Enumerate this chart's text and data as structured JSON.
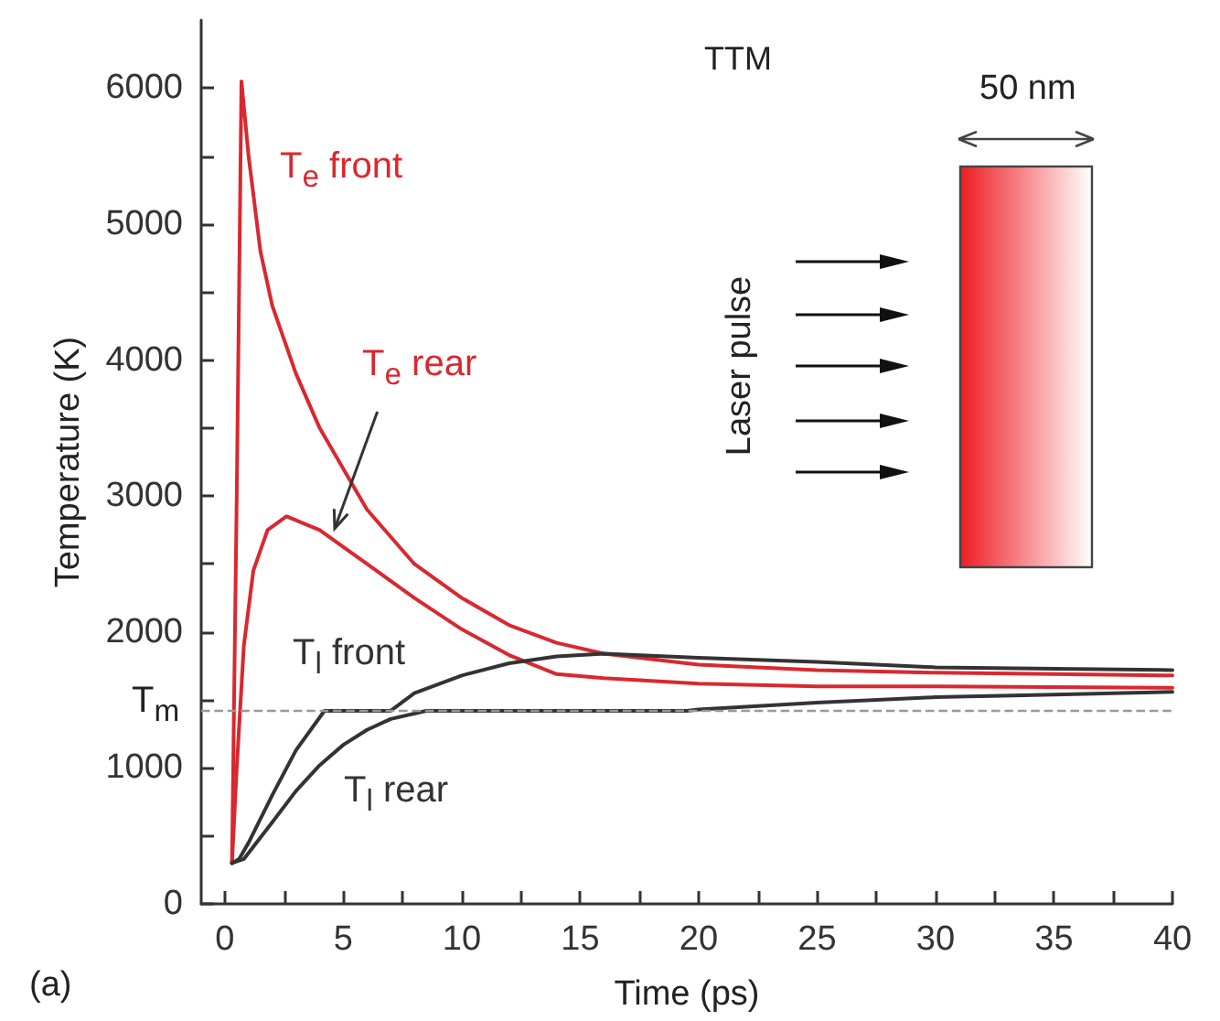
{
  "chart_data": {
    "type": "line",
    "xlabel": "Time (ps)",
    "ylabel": "Temperature (K)",
    "xlim": [
      -1,
      40
    ],
    "ylim": [
      0,
      6500
    ],
    "xticks": [
      0,
      {
        "value": 2.5,
        "label": null
      },
      5,
      {
        "value": 7.5,
        "label": null
      },
      10,
      {
        "value": 12.5,
        "label": null
      },
      15,
      {
        "value": 17.5,
        "label": null
      },
      20,
      {
        "value": 22.5,
        "label": null
      },
      25,
      {
        "value": 27.5,
        "label": null
      },
      30,
      {
        "value": 32.5,
        "label": null
      },
      35,
      {
        "value": 37.5,
        "label": null
      },
      40
    ],
    "yticks": [
      0,
      {
        "value": 500,
        "label": null
      },
      1000,
      {
        "value": 1500,
        "label": null
      },
      2000,
      {
        "value": 2500,
        "label": null
      },
      3000,
      {
        "value": 3500,
        "label": null
      },
      4000,
      {
        "value": 4500,
        "label": null
      },
      5000,
      {
        "value": 5500,
        "label": null
      },
      6000
    ],
    "grid": false,
    "marker": "none",
    "line_style": "solid",
    "series": [
      {
        "name": "T$_{e}$ front",
        "color": "#d9282f",
        "x": [
          0.3,
          0.5,
          0.7,
          1,
          1.5,
          2,
          3,
          4,
          5,
          6,
          8,
          10,
          12,
          14,
          16,
          20,
          25,
          30,
          35,
          40
        ],
        "values": [
          300,
          3000,
          6050,
          5500,
          4800,
          4400,
          3900,
          3500,
          3200,
          2900,
          2500,
          2250,
          2050,
          1920,
          1840,
          1760,
          1720,
          1700,
          1690,
          1680
        ]
      },
      {
        "name": "T$_{e}$ rear",
        "color": "#d9282f",
        "x": [
          0.3,
          0.5,
          0.8,
          1.2,
          1.8,
          2.6,
          4,
          6,
          8,
          10,
          12,
          14,
          16,
          20,
          25,
          30,
          40
        ],
        "values": [
          300,
          1000,
          1900,
          2450,
          2750,
          2850,
          2750,
          2500,
          2250,
          2020,
          1830,
          1690,
          1660,
          1620,
          1600,
          1600,
          1590
        ]
      },
      {
        "name": "T$_{l}$ front",
        "color": "#333333",
        "x": [
          0.3,
          0.6,
          1,
          2,
          3,
          4.2,
          7,
          8,
          10,
          12,
          14,
          16,
          20,
          25,
          30,
          35,
          40
        ],
        "values": [
          300,
          330,
          450,
          800,
          1130,
          1420,
          1420,
          1550,
          1680,
          1770,
          1820,
          1840,
          1810,
          1780,
          1740,
          1730,
          1720
        ]
      },
      {
        "name": "T$_{l}$ rear",
        "color": "#333333",
        "x": [
          0.3,
          0.8,
          2,
          3,
          4,
          5,
          6,
          7,
          8.5,
          19.5,
          20,
          25,
          30,
          35,
          40
        ],
        "values": [
          300,
          330,
          600,
          830,
          1020,
          1170,
          1280,
          1360,
          1420,
          1420,
          1430,
          1480,
          1520,
          1540,
          1560
        ]
      }
    ],
    "ref_lines": [
      {
        "axis": "y",
        "value": 1420,
        "label": "T$_{m}$",
        "color": "#999999",
        "line_style": "dashed"
      }
    ],
    "annotations": [
      "TTM",
      "50 nm",
      "Laser pulse",
      "(a)"
    ]
  }
}
